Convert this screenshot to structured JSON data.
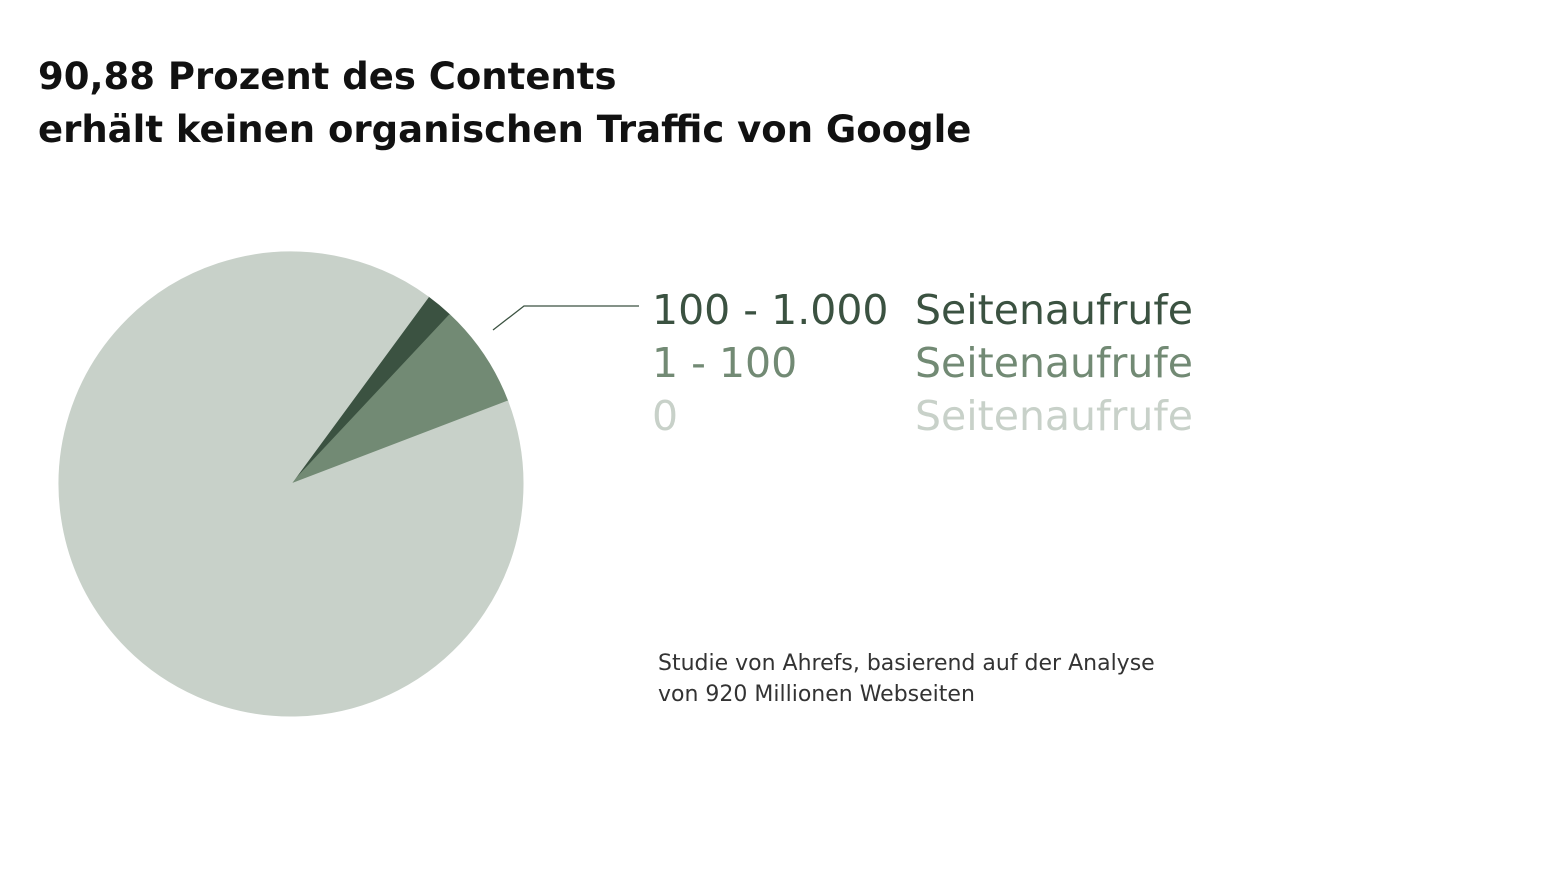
{
  "title": {
    "line1": "90,88 Prozent des Contents",
    "line2": "erhält keinen organischen Traffic von Google"
  },
  "chart_data": {
    "type": "pie",
    "title": "90,88 Prozent des Contents erhält keinen organischen Traffic von Google",
    "slices": [
      {
        "range": "100 - 1.000",
        "unit": "Seitenaufrufe",
        "value": 1.9,
        "color": "#3b5241"
      },
      {
        "range": "1 - 100",
        "unit": "Seitenaufrufe",
        "value": 7.2,
        "color": "#728a74"
      },
      {
        "range": "0",
        "unit": "Seitenaufrufe",
        "value": 90.88,
        "color": "#c8d1c9"
      }
    ]
  },
  "note": {
    "line1": "Studie von Ahrefs, basierend auf der Analyse",
    "line2": "von 920 Millionen Webseiten"
  }
}
